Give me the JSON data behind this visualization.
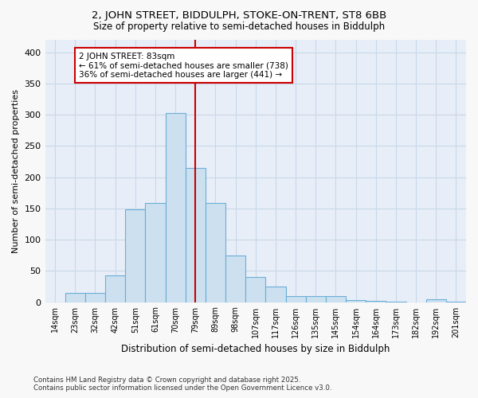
{
  "title_line1": "2, JOHN STREET, BIDDULPH, STOKE-ON-TRENT, ST8 6BB",
  "title_line2": "Size of property relative to semi-detached houses in Biddulph",
  "xlabel": "Distribution of semi-detached houses by size in Biddulph",
  "ylabel": "Number of semi-detached properties",
  "categories": [
    "14sqm",
    "23sqm",
    "32sqm",
    "42sqm",
    "51sqm",
    "61sqm",
    "70sqm",
    "79sqm",
    "89sqm",
    "98sqm",
    "107sqm",
    "117sqm",
    "126sqm",
    "135sqm",
    "145sqm",
    "154sqm",
    "164sqm",
    "173sqm",
    "182sqm",
    "192sqm",
    "201sqm"
  ],
  "values": [
    0,
    15,
    15,
    43,
    149,
    159,
    303,
    215,
    159,
    75,
    40,
    25,
    10,
    10,
    9,
    3,
    2,
    1,
    0,
    4,
    1
  ],
  "bar_color": "#cce0f0",
  "bar_edge_color": "#6aaed6",
  "vline_index": 7,
  "property_label": "2 JOHN STREET: 83sqm",
  "pct_smaller": "61% of semi-detached houses are smaller (738)",
  "pct_larger": "36% of semi-detached houses are larger (441)",
  "annotation_box_color": "#ffffff",
  "annotation_box_edge": "#cc0000",
  "vline_color": "#cc0000",
  "grid_color": "#c8d8e8",
  "bg_color": "#eaf0f8",
  "plot_bg_color": "#e8eef8",
  "ylim": [
    0,
    420
  ],
  "yticks": [
    0,
    50,
    100,
    150,
    200,
    250,
    300,
    350,
    400
  ],
  "footer": "Contains HM Land Registry data © Crown copyright and database right 2025.\nContains public sector information licensed under the Open Government Licence v3.0."
}
